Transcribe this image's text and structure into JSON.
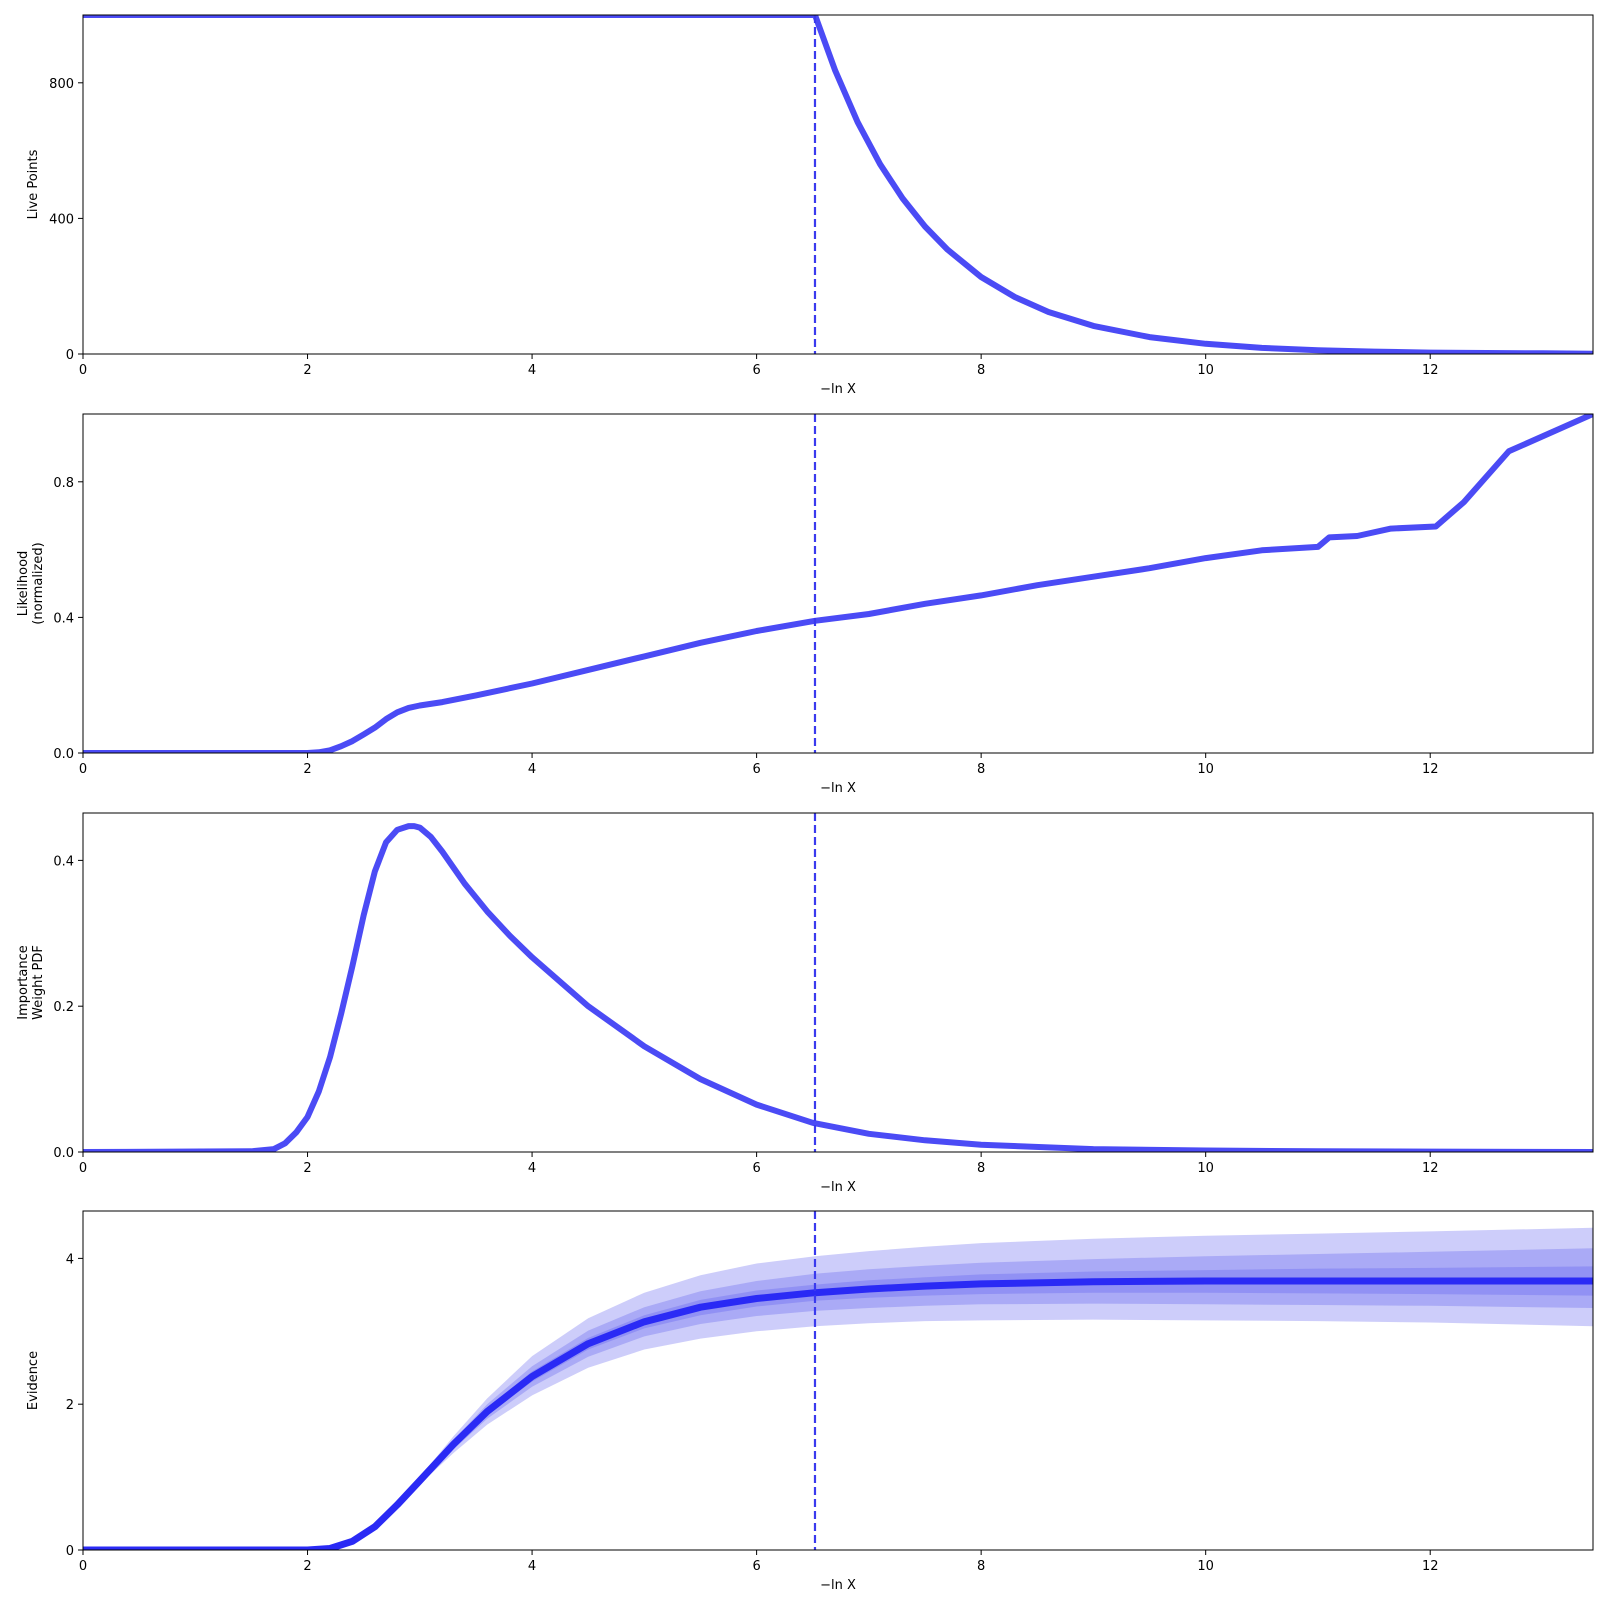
{
  "colors": {
    "line": "#4b4bf5",
    "evidence_line": "#2a2af5",
    "band": "#5a5af0",
    "vline": "#3a3aee",
    "axis": "#000000",
    "background": "#ffffff"
  },
  "chart_data": [
    {
      "type": "line",
      "id": "live-points",
      "title": "",
      "xlabel": "−ln X",
      "ylabel": [
        "Live Points"
      ],
      "xlim": [
        0,
        13.45
      ],
      "ylim": [
        0,
        1000
      ],
      "xticks": [
        0,
        2,
        4,
        6,
        8,
        10,
        12
      ],
      "yticks": [
        0,
        400,
        800
      ],
      "grid": false,
      "vline": 6.52,
      "series": [
        {
          "x": [
            0,
            6.52,
            6.7,
            6.9,
            7.1,
            7.3,
            7.5,
            7.7,
            8.0,
            8.3,
            8.6,
            9.0,
            9.5,
            10.0,
            10.5,
            11.0,
            11.5,
            12.0,
            12.5,
            13.0,
            13.45
          ],
          "y": [
            1000,
            1000,
            836,
            684,
            560,
            459,
            376,
            308,
            227,
            168,
            124,
            83,
            50,
            30,
            18,
            11,
            7,
            4,
            3,
            2,
            1
          ]
        }
      ]
    },
    {
      "type": "line",
      "id": "likelihood",
      "title": "",
      "xlabel": "−ln X",
      "ylabel": [
        "Likelihood",
        "(normalized)"
      ],
      "xlim": [
        0,
        13.45
      ],
      "ylim": [
        0,
        1.0
      ],
      "xticks": [
        0,
        2,
        4,
        6,
        8,
        10,
        12
      ],
      "yticks": [
        0.0,
        0.4,
        0.8
      ],
      "ytick_labels": [
        "0.0",
        "0.4",
        "0.8"
      ],
      "grid": false,
      "vline": 6.52,
      "series": [
        {
          "x": [
            0,
            2.0,
            2.1,
            2.2,
            2.3,
            2.4,
            2.5,
            2.6,
            2.7,
            2.8,
            2.9,
            3.0,
            3.2,
            3.5,
            4.0,
            4.5,
            5.0,
            5.5,
            6.0,
            6.52,
            7.0,
            7.5,
            8.0,
            8.5,
            9.0,
            9.5,
            10.0,
            10.5,
            11.0,
            11.1,
            11.35,
            11.65,
            12.05,
            12.3,
            12.7,
            13.45
          ],
          "y": [
            0,
            0,
            0.002,
            0.008,
            0.02,
            0.035,
            0.055,
            0.075,
            0.1,
            0.12,
            0.133,
            0.14,
            0.15,
            0.17,
            0.205,
            0.245,
            0.285,
            0.325,
            0.36,
            0.39,
            0.41,
            0.44,
            0.465,
            0.495,
            0.52,
            0.545,
            0.575,
            0.598,
            0.608,
            0.636,
            0.64,
            0.662,
            0.668,
            0.74,
            0.89,
            1.0
          ]
        }
      ]
    },
    {
      "type": "line",
      "id": "importance-weight",
      "title": "",
      "xlabel": "−ln X",
      "ylabel": [
        "Importance",
        "Weight PDF"
      ],
      "xlim": [
        0,
        13.45
      ],
      "ylim": [
        0,
        0.465
      ],
      "xticks": [
        0,
        2,
        4,
        6,
        8,
        10,
        12
      ],
      "yticks": [
        0.0,
        0.2,
        0.4
      ],
      "ytick_labels": [
        "0.0",
        "0.2",
        "0.4"
      ],
      "grid": false,
      "vline": 6.52,
      "series": [
        {
          "x": [
            0,
            1.5,
            1.7,
            1.8,
            1.9,
            2.0,
            2.1,
            2.2,
            2.3,
            2.4,
            2.5,
            2.6,
            2.7,
            2.8,
            2.9,
            2.95,
            3.0,
            3.1,
            3.2,
            3.4,
            3.6,
            3.8,
            4.0,
            4.5,
            5.0,
            5.5,
            6.0,
            6.5,
            7.0,
            7.5,
            8.0,
            9.0,
            10.0,
            11.0,
            12.0,
            13.45
          ],
          "y": [
            0,
            0.001,
            0.004,
            0.012,
            0.027,
            0.048,
            0.083,
            0.13,
            0.19,
            0.255,
            0.325,
            0.385,
            0.425,
            0.442,
            0.447,
            0.447,
            0.445,
            0.432,
            0.412,
            0.368,
            0.33,
            0.297,
            0.267,
            0.2,
            0.145,
            0.1,
            0.065,
            0.04,
            0.025,
            0.016,
            0.01,
            0.004,
            0.002,
            0.001,
            0.0005,
            0
          ]
        }
      ]
    },
    {
      "type": "area",
      "id": "evidence",
      "title": "",
      "xlabel": "−ln X",
      "ylabel": [
        "Evidence"
      ],
      "xlim": [
        0,
        13.45
      ],
      "ylim": [
        0,
        4.65
      ],
      "xticks": [
        0,
        2,
        4,
        6,
        8,
        10,
        12
      ],
      "yticks": [
        0,
        2,
        4
      ],
      "grid": false,
      "vline": 6.52,
      "x": [
        0,
        2.0,
        2.2,
        2.4,
        2.6,
        2.8,
        3.0,
        3.3,
        3.6,
        4.0,
        4.5,
        5.0,
        5.5,
        6.0,
        6.52,
        7.0,
        7.5,
        8.0,
        9.0,
        10.0,
        11.0,
        12.0,
        13.45
      ],
      "series": [
        {
          "name": "median",
          "y": [
            0,
            0,
            0.02,
            0.12,
            0.32,
            0.62,
            0.95,
            1.45,
            1.9,
            2.38,
            2.83,
            3.13,
            3.33,
            3.45,
            3.53,
            3.58,
            3.62,
            3.65,
            3.68,
            3.69,
            3.69,
            3.69,
            3.69
          ]
        }
      ],
      "bands": [
        {
          "lower": [
            0,
            0,
            0.02,
            0.11,
            0.3,
            0.58,
            0.9,
            1.33,
            1.72,
            2.12,
            2.5,
            2.75,
            2.9,
            3.0,
            3.07,
            3.11,
            3.14,
            3.15,
            3.16,
            3.15,
            3.14,
            3.12,
            3.07
          ],
          "upper": [
            0,
            0,
            0.02,
            0.13,
            0.34,
            0.66,
            1.0,
            1.56,
            2.08,
            2.66,
            3.18,
            3.53,
            3.77,
            3.93,
            4.03,
            4.1,
            4.16,
            4.21,
            4.27,
            4.31,
            4.34,
            4.37,
            4.42
          ]
        },
        {
          "lower": [
            0,
            0,
            0.02,
            0.11,
            0.31,
            0.6,
            0.92,
            1.38,
            1.8,
            2.24,
            2.65,
            2.93,
            3.1,
            3.21,
            3.28,
            3.32,
            3.35,
            3.37,
            3.38,
            3.37,
            3.36,
            3.35,
            3.32
          ],
          "upper": [
            0,
            0,
            0.02,
            0.13,
            0.33,
            0.64,
            0.98,
            1.51,
            2.0,
            2.52,
            3.01,
            3.33,
            3.55,
            3.69,
            3.79,
            3.85,
            3.9,
            3.94,
            3.99,
            4.03,
            4.06,
            4.09,
            4.14
          ]
        },
        {
          "lower": [
            0,
            0,
            0.02,
            0.12,
            0.32,
            0.61,
            0.94,
            1.42,
            1.85,
            2.31,
            2.75,
            3.04,
            3.22,
            3.34,
            3.42,
            3.46,
            3.49,
            3.51,
            3.53,
            3.53,
            3.52,
            3.51,
            3.49
          ],
          "upper": [
            0,
            0,
            0.02,
            0.12,
            0.32,
            0.63,
            0.96,
            1.48,
            1.95,
            2.45,
            2.91,
            3.22,
            3.43,
            3.56,
            3.64,
            3.7,
            3.74,
            3.78,
            3.82,
            3.84,
            3.86,
            3.87,
            3.89
          ]
        }
      ]
    }
  ]
}
